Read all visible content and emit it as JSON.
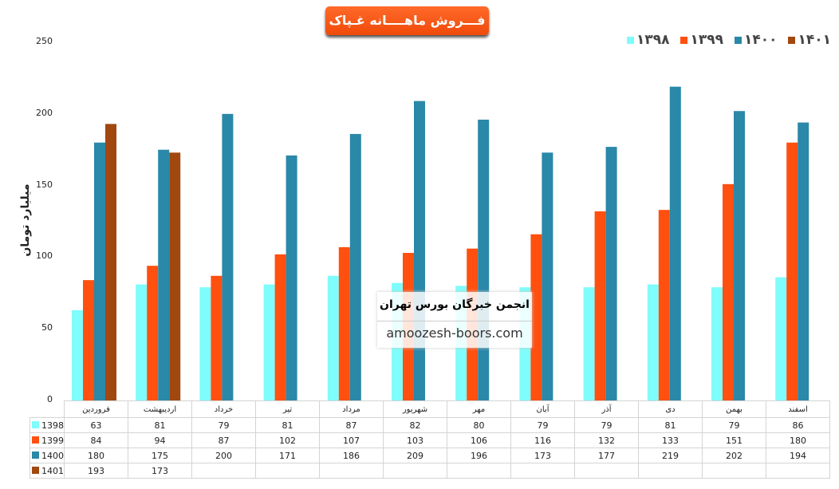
{
  "chart_data": {
    "type": "bar",
    "title": "فـــروش ماهــــانه غـپاک",
    "ylabel": "میلیارد تومان",
    "ylim": [
      0,
      250
    ],
    "yticks": [
      0,
      50,
      100,
      150,
      200,
      250
    ],
    "grid": false,
    "legend_placement": "top-right",
    "categories": [
      "فروردین",
      "اردیبهشت",
      "خرداد",
      "تیر",
      "مرداد",
      "شهریور",
      "مهر",
      "آبان",
      "آذر",
      "دی",
      "بهمن",
      "اسفند"
    ],
    "series": [
      {
        "name": "1398",
        "legend_label": "۱۳۹۸",
        "color": "#7ffcfc",
        "values": [
          63,
          81,
          79,
          81,
          87,
          82,
          80,
          79,
          79,
          81,
          79,
          86
        ]
      },
      {
        "name": "1399",
        "legend_label": "۱۳۹۹",
        "color": "#ff5010",
        "values": [
          84,
          94,
          87,
          102,
          107,
          103,
          106,
          116,
          132,
          133,
          151,
          180
        ]
      },
      {
        "name": "1400",
        "legend_label": "۱۴۰۰",
        "color": "#2a88a8",
        "values": [
          180,
          175,
          200,
          171,
          186,
          209,
          196,
          173,
          177,
          219,
          202,
          194
        ]
      },
      {
        "name": "1401",
        "legend_label": "۱۴۰۱",
        "color": "#a04810",
        "values": [
          193,
          173,
          null,
          null,
          null,
          null,
          null,
          null,
          null,
          null,
          null,
          null
        ]
      }
    ]
  },
  "watermark": {
    "title": "انجمن خبرگان بورس تهران",
    "url": "amoozesh-boors.com"
  }
}
